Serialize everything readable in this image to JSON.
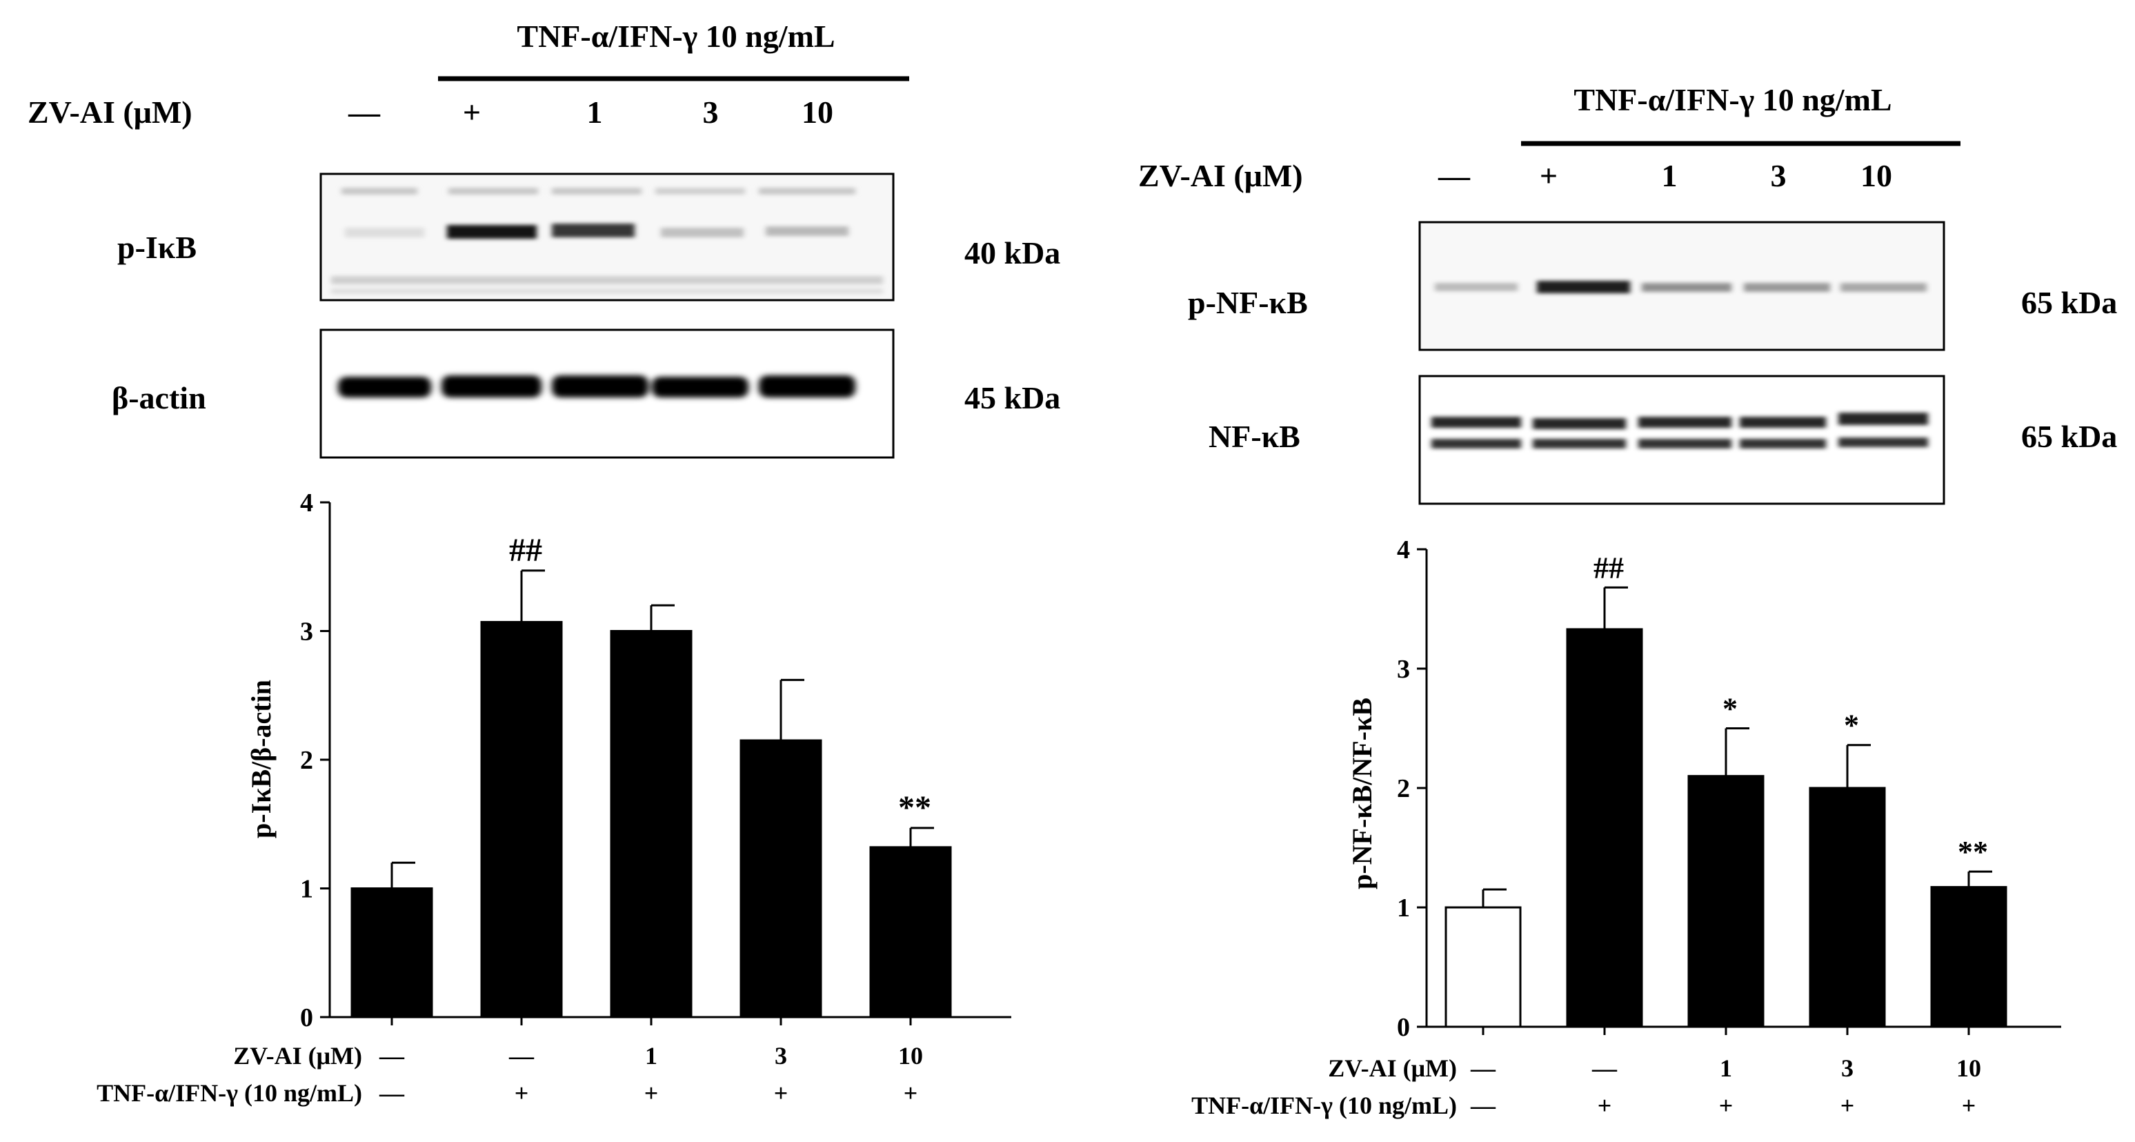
{
  "panels": [
    {
      "treatment_header": "TNF-α/IFN-γ 10 ng/mL",
      "blot_row_label": "ZV-AI (μM)",
      "lanes": [
        "—",
        "+",
        "1",
        "3",
        "10"
      ],
      "blots": [
        {
          "label": "p-IκB",
          "size": "40 kDa",
          "intensity": [
            0.1,
            1.0,
            0.8,
            0.25,
            0.25
          ]
        },
        {
          "label": "β-actin",
          "size": "45 kDa",
          "intensity": [
            1.0,
            1.0,
            1.0,
            1.0,
            1.0
          ]
        }
      ]
    },
    {
      "treatment_header": "TNF-α/IFN-γ 10 ng/mL",
      "blot_row_label": "ZV-AI (μM)",
      "lanes": [
        "—",
        "+",
        "1",
        "3",
        "10"
      ],
      "blots": [
        {
          "label": "p-NF-κB",
          "size": "65 kDa",
          "intensity": [
            0.3,
            1.0,
            0.5,
            0.45,
            0.4
          ]
        },
        {
          "label": "NF-κB",
          "size": "65 kDa",
          "intensity": [
            1.0,
            1.0,
            1.0,
            1.0,
            1.0
          ]
        }
      ]
    }
  ],
  "chart_data": [
    {
      "type": "bar",
      "categories": [
        "1",
        "2",
        "3",
        "4",
        "5"
      ],
      "values": [
        1.0,
        3.07,
        3.0,
        2.15,
        1.32
      ],
      "errors": [
        0.2,
        0.4,
        0.2,
        0.47,
        0.15
      ],
      "annotations": [
        "",
        "##",
        "",
        "",
        "**"
      ],
      "bar_colors": [
        "#000000",
        "#000000",
        "#000000",
        "#000000",
        "#000000"
      ],
      "ylabel": "p-IκB/β-actin",
      "ylim": [
        0,
        4
      ],
      "yticks": [
        "0",
        "1",
        "2",
        "3",
        "4"
      ],
      "table_rows": [
        {
          "label": "ZV-AI (μM)",
          "cells": [
            "—",
            "—",
            "1",
            "3",
            "10"
          ]
        },
        {
          "label": "TNF-α/IFN-γ (10 ng/mL)",
          "cells": [
            "—",
            "+",
            "+",
            "+",
            "+"
          ]
        }
      ]
    },
    {
      "type": "bar",
      "categories": [
        "1",
        "2",
        "3",
        "4",
        "5"
      ],
      "values": [
        1.0,
        3.33,
        2.1,
        2.0,
        1.17
      ],
      "errors": [
        0.15,
        0.35,
        0.4,
        0.36,
        0.13
      ],
      "annotations": [
        "",
        "##",
        "*",
        "*",
        "**"
      ],
      "bar_colors": [
        "#ffffff",
        "#000000",
        "#000000",
        "#000000",
        "#000000"
      ],
      "ylabel": "p-NF-κB/NF-κB",
      "ylim": [
        0,
        4
      ],
      "yticks": [
        "0",
        "1",
        "2",
        "3",
        "4"
      ],
      "table_rows": [
        {
          "label": "ZV-AI (μM)",
          "cells": [
            "—",
            "—",
            "1",
            "3",
            "10"
          ]
        },
        {
          "label": "TNF-α/IFN-γ (10 ng/mL)",
          "cells": [
            "—",
            "+",
            "+",
            "+",
            "+"
          ]
        }
      ]
    }
  ]
}
